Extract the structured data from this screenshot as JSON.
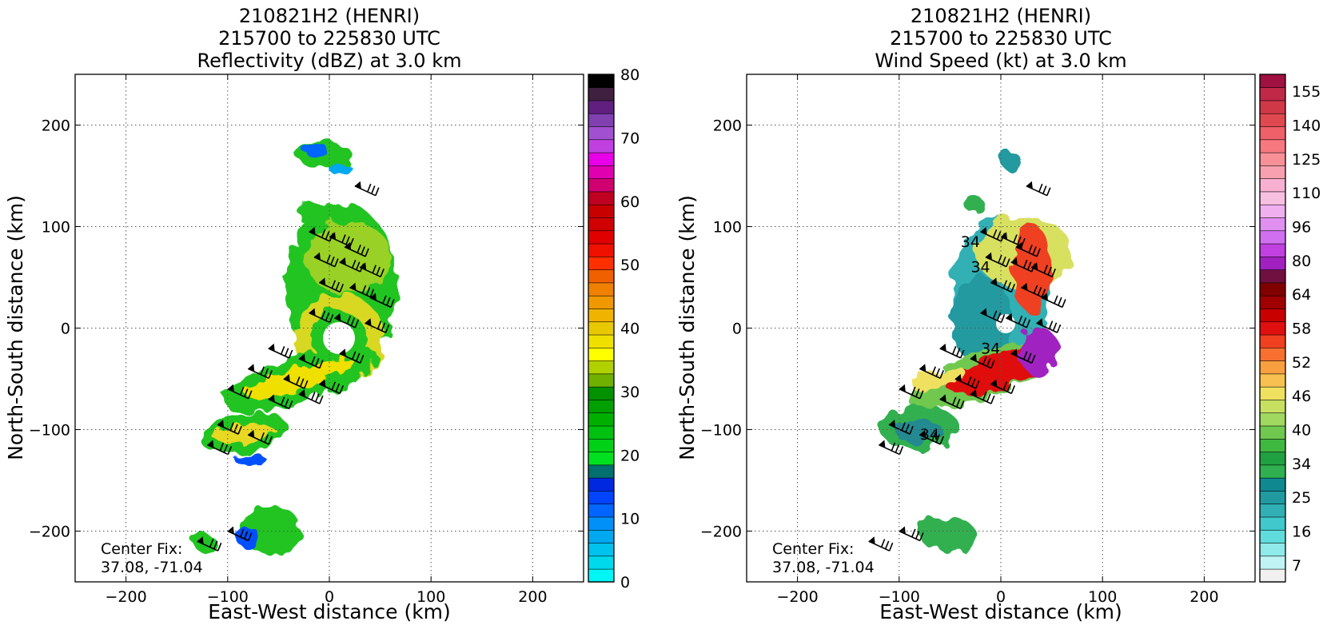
{
  "chart_data": [
    {
      "type": "heatmap",
      "title": [
        "210821H2 (HENRI)",
        "215700 to 225830 UTC",
        "Reflectivity (dBZ) at 3.0 km"
      ],
      "xlabel": "East-West distance (km)",
      "ylabel": "North-South distance (km)",
      "xlim": [
        -250,
        250
      ],
      "ylim": [
        -250,
        250
      ],
      "xticks": [
        -200,
        -100,
        0,
        100,
        200
      ],
      "yticks": [
        -200,
        -100,
        0,
        100,
        200
      ],
      "xtick_labels": [
        "−200",
        "−100",
        "0",
        "100",
        "200"
      ],
      "ytick_labels": [
        "−200",
        "−100",
        "0",
        "100",
        "200"
      ],
      "grid": true,
      "annotation": [
        "Center Fix:",
        "37.08, -71.04"
      ],
      "colorbar": {
        "min": 0,
        "max": 80,
        "ticks": [
          0,
          10,
          20,
          30,
          40,
          50,
          60,
          70,
          80
        ],
        "tick_labels": [
          "0",
          "10",
          "20",
          "30",
          "40",
          "50",
          "60",
          "70",
          "80"
        ],
        "colors": [
          "#00f5f5",
          "#00d8ec",
          "#00c2ee",
          "#00a8f0",
          "#0090f8",
          "#0066ff",
          "#0044ff",
          "#0028e0",
          "#007070",
          "#00e020",
          "#00d018",
          "#00c010",
          "#00b000",
          "#00a000",
          "#009000",
          "#70b000",
          "#b0d000",
          "#ffff00",
          "#f0e000",
          "#e8c800",
          "#f0b400",
          "#f09800",
          "#f08000",
          "#f06000",
          "#ff3000",
          "#f01000",
          "#e00000",
          "#d00000",
          "#c80000",
          "#c00020",
          "#d00070",
          "#e000b0",
          "#e800e8",
          "#c040e0",
          "#a050d0",
          "#8040b0",
          "#602080",
          "#402040",
          "#000000"
        ]
      },
      "features": [
        {
          "kind": "rain-band",
          "cx": 15,
          "cy": 45,
          "rx": 55,
          "ry": 85
        },
        {
          "kind": "eyewall-ring",
          "cx": 10,
          "cy": -10,
          "r": 45
        },
        {
          "kind": "rain-band",
          "cx": -30,
          "cy": -50,
          "rx": 80,
          "ry": 22
        },
        {
          "kind": "rain-band",
          "cx": -85,
          "cy": -105,
          "rx": 45,
          "ry": 18
        },
        {
          "kind": "rain-cell",
          "cx": -60,
          "cy": -200,
          "rx": 30,
          "ry": 22
        },
        {
          "kind": "rain-cell",
          "cx": -5,
          "cy": 160,
          "rx": 35,
          "ry": 15
        }
      ],
      "wind_barbs": [
        {
          "x": -20,
          "y": 95
        },
        {
          "x": 0,
          "y": 90
        },
        {
          "x": 15,
          "y": 80
        },
        {
          "x": -15,
          "y": 70
        },
        {
          "x": 10,
          "y": 65
        },
        {
          "x": 30,
          "y": 60
        },
        {
          "x": -10,
          "y": 45
        },
        {
          "x": 20,
          "y": 40
        },
        {
          "x": 40,
          "y": 30
        },
        {
          "x": -20,
          "y": 15
        },
        {
          "x": 5,
          "y": 10
        },
        {
          "x": 35,
          "y": 5
        },
        {
          "x": -60,
          "y": -20
        },
        {
          "x": -30,
          "y": -30
        },
        {
          "x": 10,
          "y": -25
        },
        {
          "x": -80,
          "y": -40
        },
        {
          "x": -45,
          "y": -50
        },
        {
          "x": -10,
          "y": -55
        },
        {
          "x": -100,
          "y": -60
        },
        {
          "x": -60,
          "y": -70
        },
        {
          "x": -30,
          "y": -65
        },
        {
          "x": -110,
          "y": -95
        },
        {
          "x": -80,
          "y": -105
        },
        {
          "x": -120,
          "y": -115
        },
        {
          "x": 25,
          "y": 140
        },
        {
          "x": -100,
          "y": -200
        },
        {
          "x": -130,
          "y": -210
        }
      ]
    },
    {
      "type": "heatmap",
      "title": [
        "210821H2 (HENRI)",
        "215700 to 225830 UTC",
        "Wind Speed (kt) at 3.0 km"
      ],
      "xlabel": "East-West distance (km)",
      "ylabel": "North-South distance (km)",
      "xlim": [
        -250,
        250
      ],
      "ylim": [
        -250,
        250
      ],
      "xticks": [
        -200,
        -100,
        0,
        100,
        200
      ],
      "yticks": [
        -200,
        -100,
        0,
        100,
        200
      ],
      "xtick_labels": [
        "−200",
        "−100",
        "0",
        "100",
        "200"
      ],
      "ytick_labels": [
        "−200",
        "−100",
        "0",
        "100",
        "200"
      ],
      "grid": true,
      "annotation": [
        "Center Fix:",
        "37.08, -71.04"
      ],
      "contour_labels": [
        {
          "text": "34",
          "x": -30,
          "y": 80
        },
        {
          "text": "34",
          "x": -20,
          "y": 55
        },
        {
          "text": "34",
          "x": -10,
          "y": -25
        },
        {
          "text": "34",
          "x": -70,
          "y": -110
        }
      ],
      "colorbar": {
        "ticks": [
          "7",
          "16",
          "25",
          "34",
          "40",
          "46",
          "52",
          "58",
          "64",
          "80",
          "96",
          "110",
          "125",
          "140",
          "155"
        ],
        "tick_labels": [
          "7",
          "16",
          "25",
          "34",
          "40",
          "46",
          "52",
          "58",
          "64",
          "80",
          "96",
          "110",
          "125",
          "140",
          "155"
        ],
        "colors": [
          "#f0f0f0",
          "#c0f4f4",
          "#90eaea",
          "#60dcdc",
          "#40c8cc",
          "#30b0b4",
          "#209aa0",
          "#108890",
          "#30b050",
          "#20a040",
          "#40b840",
          "#70c850",
          "#a0d860",
          "#c8e060",
          "#f0e060",
          "#f8c050",
          "#f8a040",
          "#f87030",
          "#f04020",
          "#e01010",
          "#c80000",
          "#a00000",
          "#800000",
          "#701040",
          "#a020c0",
          "#c040e0",
          "#d070f0",
          "#e090f0",
          "#f0b0f0",
          "#f8c0e0",
          "#f8b0d0",
          "#f8a0b0",
          "#f89098",
          "#f87880",
          "#f06068",
          "#e04850",
          "#d03848",
          "#c02848",
          "#a01040"
        ]
      },
      "features": [
        {
          "kind": "wind-core",
          "cx": 0,
          "cy": 40,
          "rx": 45,
          "ry": 70
        },
        {
          "kind": "wind-max",
          "cx": 20,
          "cy": -30,
          "rx": 40,
          "ry": 25
        },
        {
          "kind": "wind-band",
          "cx": -40,
          "cy": -50,
          "rx": 70,
          "ry": 18
        },
        {
          "kind": "wind-band",
          "cx": -90,
          "cy": -110,
          "rx": 45,
          "ry": 25
        }
      ]
    }
  ]
}
